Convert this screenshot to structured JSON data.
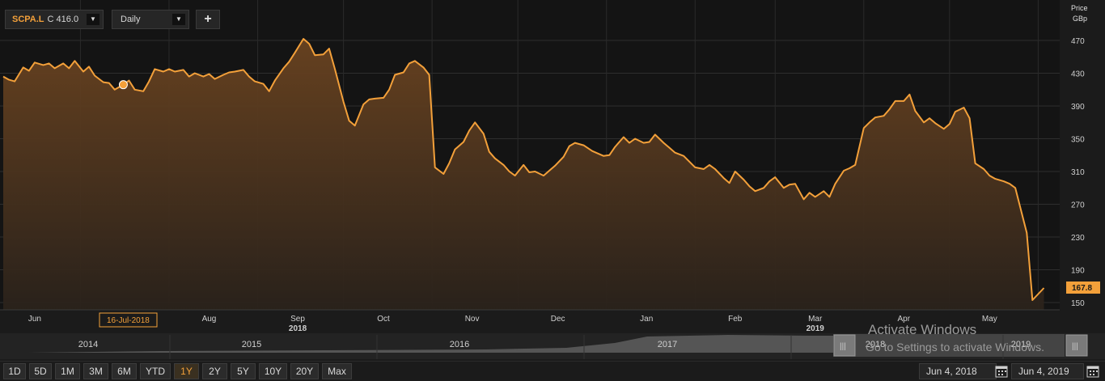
{
  "toolbar": {
    "ticker": "SCPA.L",
    "quote": "C 416.0",
    "interval": "Daily",
    "add_label": "+"
  },
  "price_header": {
    "line1": "Price",
    "line2": "GBp"
  },
  "cursor_date": "16-Jul-2018",
  "last_price_label": "167.8",
  "colors": {
    "line": "#f3a03a",
    "accent": "#f3a03a",
    "background": "#1b1b1b"
  },
  "chart_data": {
    "type": "area",
    "ylabel": "Price GBp",
    "ylim": [
      150,
      470
    ],
    "yticks": [
      470,
      430,
      390,
      350,
      310,
      270,
      230,
      190,
      150
    ],
    "grid": true,
    "xticks": [
      {
        "label": "Jun",
        "sub": ""
      },
      {
        "label": "Jul",
        "sub": ""
      },
      {
        "label": "Aug",
        "sub": ""
      },
      {
        "label": "Sep",
        "sub": "2018"
      },
      {
        "label": "Oct",
        "sub": ""
      },
      {
        "label": "Nov",
        "sub": ""
      },
      {
        "label": "Dec",
        "sub": ""
      },
      {
        "label": "Jan",
        "sub": ""
      },
      {
        "label": "Feb",
        "sub": ""
      },
      {
        "label": "Mar",
        "sub": "2019"
      },
      {
        "label": "Apr",
        "sub": ""
      },
      {
        "label": "May",
        "sub": ""
      }
    ],
    "x_range": [
      "2018-06-04",
      "2019-06-04"
    ],
    "series": [
      {
        "values": [
          [
            "2018-06-04",
            426
          ],
          [
            "2018-06-06",
            422
          ],
          [
            "2018-06-08",
            420
          ],
          [
            "2018-06-11",
            437
          ],
          [
            "2018-06-13",
            433
          ],
          [
            "2018-06-15",
            443
          ],
          [
            "2018-06-18",
            440
          ],
          [
            "2018-06-20",
            442
          ],
          [
            "2018-06-22",
            436
          ],
          [
            "2018-06-25",
            442
          ],
          [
            "2018-06-27",
            436
          ],
          [
            "2018-06-29",
            445
          ],
          [
            "2018-07-02",
            432
          ],
          [
            "2018-07-04",
            438
          ],
          [
            "2018-07-06",
            427
          ],
          [
            "2018-07-09",
            419
          ],
          [
            "2018-07-11",
            418
          ],
          [
            "2018-07-13",
            410
          ],
          [
            "2018-07-16",
            416
          ],
          [
            "2018-07-18",
            421
          ],
          [
            "2018-07-20",
            410
          ],
          [
            "2018-07-23",
            408
          ],
          [
            "2018-07-25",
            420
          ],
          [
            "2018-07-27",
            435
          ],
          [
            "2018-07-30",
            432
          ],
          [
            "2018-08-01",
            435
          ],
          [
            "2018-08-03",
            432
          ],
          [
            "2018-08-06",
            434
          ],
          [
            "2018-08-08",
            426
          ],
          [
            "2018-08-10",
            430
          ],
          [
            "2018-08-13",
            426
          ],
          [
            "2018-08-15",
            429
          ],
          [
            "2018-08-17",
            423
          ],
          [
            "2018-08-20",
            428
          ],
          [
            "2018-08-22",
            431
          ],
          [
            "2018-08-24",
            432
          ],
          [
            "2018-08-27",
            434
          ],
          [
            "2018-08-29",
            426
          ],
          [
            "2018-08-31",
            420
          ],
          [
            "2018-09-03",
            417
          ],
          [
            "2018-09-05",
            408
          ],
          [
            "2018-09-07",
            421
          ],
          [
            "2018-09-10",
            436
          ],
          [
            "2018-09-12",
            444
          ],
          [
            "2018-09-14",
            455
          ],
          [
            "2018-09-17",
            472
          ],
          [
            "2018-09-19",
            466
          ],
          [
            "2018-09-21",
            452
          ],
          [
            "2018-09-24",
            453
          ],
          [
            "2018-09-26",
            460
          ],
          [
            "2018-09-28",
            435
          ],
          [
            "2018-10-01",
            395
          ],
          [
            "2018-10-03",
            372
          ],
          [
            "2018-10-05",
            366
          ],
          [
            "2018-10-08",
            392
          ],
          [
            "2018-10-10",
            398
          ],
          [
            "2018-10-12",
            399
          ],
          [
            "2018-10-15",
            400
          ],
          [
            "2018-10-17",
            410
          ],
          [
            "2018-10-19",
            428
          ],
          [
            "2018-10-22",
            431
          ],
          [
            "2018-10-24",
            442
          ],
          [
            "2018-10-26",
            445
          ],
          [
            "2018-10-29",
            437
          ],
          [
            "2018-10-31",
            428
          ],
          [
            "2018-11-02",
            315
          ],
          [
            "2018-11-05",
            307
          ],
          [
            "2018-11-07",
            320
          ],
          [
            "2018-11-09",
            337
          ],
          [
            "2018-11-12",
            346
          ],
          [
            "2018-11-14",
            360
          ],
          [
            "2018-11-16",
            370
          ],
          [
            "2018-11-19",
            356
          ],
          [
            "2018-11-21",
            334
          ],
          [
            "2018-11-23",
            326
          ],
          [
            "2018-11-26",
            318
          ],
          [
            "2018-11-28",
            310
          ],
          [
            "2018-11-30",
            305
          ],
          [
            "2018-12-03",
            318
          ],
          [
            "2018-12-05",
            309
          ],
          [
            "2018-12-07",
            310
          ],
          [
            "2018-12-10",
            305
          ],
          [
            "2018-12-12",
            311
          ],
          [
            "2018-12-14",
            317
          ],
          [
            "2018-12-17",
            328
          ],
          [
            "2018-12-19",
            341
          ],
          [
            "2018-12-21",
            345
          ],
          [
            "2018-12-24",
            342
          ],
          [
            "2018-12-27",
            335
          ],
          [
            "2018-12-31",
            329
          ],
          [
            "2019-01-02",
            330
          ],
          [
            "2019-01-04",
            340
          ],
          [
            "2019-01-07",
            352
          ],
          [
            "2019-01-09",
            345
          ],
          [
            "2019-01-11",
            350
          ],
          [
            "2019-01-14",
            345
          ],
          [
            "2019-01-16",
            346
          ],
          [
            "2019-01-18",
            355
          ],
          [
            "2019-01-21",
            345
          ],
          [
            "2019-01-23",
            339
          ],
          [
            "2019-01-25",
            333
          ],
          [
            "2019-01-28",
            329
          ],
          [
            "2019-01-30",
            322
          ],
          [
            "2019-02-01",
            315
          ],
          [
            "2019-02-04",
            313
          ],
          [
            "2019-02-06",
            318
          ],
          [
            "2019-02-08",
            313
          ],
          [
            "2019-02-11",
            302
          ],
          [
            "2019-02-13",
            296
          ],
          [
            "2019-02-15",
            310
          ],
          [
            "2019-02-18",
            300
          ],
          [
            "2019-02-20",
            292
          ],
          [
            "2019-02-22",
            286
          ],
          [
            "2019-02-25",
            290
          ],
          [
            "2019-02-27",
            298
          ],
          [
            "2019-03-01",
            303
          ],
          [
            "2019-03-04",
            290
          ],
          [
            "2019-03-06",
            294
          ],
          [
            "2019-03-08",
            295
          ],
          [
            "2019-03-11",
            276
          ],
          [
            "2019-03-13",
            284
          ],
          [
            "2019-03-15",
            279
          ],
          [
            "2019-03-18",
            286
          ],
          [
            "2019-03-20",
            279
          ],
          [
            "2019-03-22",
            295
          ],
          [
            "2019-03-25",
            311
          ],
          [
            "2019-03-27",
            314
          ],
          [
            "2019-03-29",
            318
          ],
          [
            "2019-04-01",
            363
          ],
          [
            "2019-04-03",
            370
          ],
          [
            "2019-04-05",
            376
          ],
          [
            "2019-04-08",
            378
          ],
          [
            "2019-04-10",
            386
          ],
          [
            "2019-04-12",
            396
          ],
          [
            "2019-04-15",
            396
          ],
          [
            "2019-04-17",
            404
          ],
          [
            "2019-04-19",
            384
          ],
          [
            "2019-04-22",
            370
          ],
          [
            "2019-04-24",
            375
          ],
          [
            "2019-04-26",
            369
          ],
          [
            "2019-04-29",
            362
          ],
          [
            "2019-05-01",
            368
          ],
          [
            "2019-05-03",
            383
          ],
          [
            "2019-05-06",
            388
          ],
          [
            "2019-05-08",
            375
          ],
          [
            "2019-05-10",
            320
          ],
          [
            "2019-05-13",
            313
          ],
          [
            "2019-05-15",
            305
          ],
          [
            "2019-05-17",
            301
          ],
          [
            "2019-05-20",
            298
          ],
          [
            "2019-05-22",
            295
          ],
          [
            "2019-05-24",
            290
          ],
          [
            "2019-05-28",
            235
          ],
          [
            "2019-05-30",
            153
          ],
          [
            "2019-06-03",
            167.8
          ]
        ]
      }
    ],
    "marker": {
      "date": "2018-07-16",
      "value": 416
    }
  },
  "navigator": {
    "years": [
      "2014",
      "2015",
      "2016",
      "2017",
      "2018",
      "2019"
    ]
  },
  "ranges": [
    "1D",
    "5D",
    "1M",
    "3M",
    "6M",
    "YTD",
    "1Y",
    "2Y",
    "5Y",
    "10Y",
    "20Y",
    "Max"
  ],
  "active_range": "1Y",
  "date_from": "Jun 4, 2018",
  "date_to": "Jun 4, 2019",
  "watermark": {
    "title": "Activate Windows",
    "subtitle": "Go to Settings to activate Windows."
  }
}
